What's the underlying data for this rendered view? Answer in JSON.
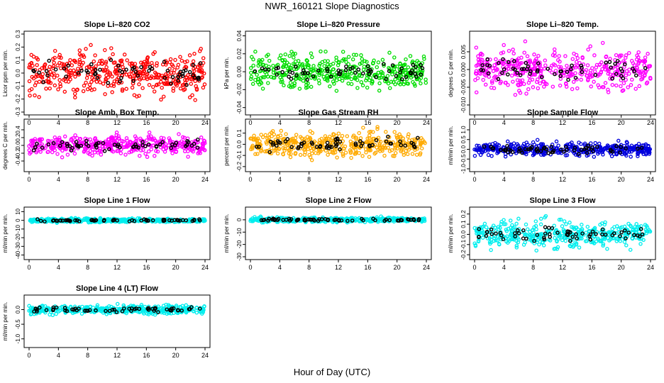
{
  "page": {
    "title": "NWR_160121  Slope Diagnostics",
    "xlabel": "Hour of Day (UTC)"
  },
  "chart_data": [
    {
      "type": "scatter",
      "title": "Slope Li–820 CO2",
      "ylabel": "Licor ppm per min.",
      "xlim": [
        0,
        24
      ],
      "ylim": [
        -0.3,
        0.3
      ],
      "xticks": [
        0,
        4,
        8,
        12,
        16,
        20,
        24
      ],
      "yticks": [
        -0.3,
        -0.2,
        -0.1,
        0.0,
        0.1,
        0.2,
        0.3
      ],
      "ytick_labels": [
        "-0.3",
        "-0.2",
        "-0.1",
        "0.0",
        "0.1",
        "0.2",
        "0.3"
      ],
      "color": "#ff0000",
      "spread": 0.09,
      "series": [
        {
          "name": "",
          "values": "dense"
        }
      ]
    },
    {
      "type": "scatter",
      "title": "Slope Li–820 Pressure",
      "ylabel": "kPa per min.",
      "xlim": [
        0,
        24
      ],
      "ylim": [
        -0.045,
        0.042
      ],
      "xticks": [
        0,
        4,
        8,
        12,
        16,
        20,
        24
      ],
      "yticks": [
        -0.04,
        -0.02,
        0.0,
        0.02,
        0.04
      ],
      "ytick_labels": [
        "-0.04",
        "-0.02",
        "0.00",
        "0.02",
        "0.04"
      ],
      "color": "#00dd00",
      "spread": 0.01,
      "series": [
        {
          "name": "",
          "values": "dense"
        }
      ]
    },
    {
      "type": "scatter",
      "title": "Slope Li–820 Temp.",
      "ylabel": "degrees C per min.",
      "xlim": [
        0,
        24
      ],
      "ylim": [
        -0.012,
        0.01
      ],
      "xticks": [
        0,
        4,
        8,
        12,
        16,
        20,
        24
      ],
      "yticks": [
        -0.01,
        -0.005,
        0.0,
        0.005
      ],
      "ytick_labels": [
        "-0.010",
        "-0.005",
        "0.000",
        "0.005"
      ],
      "color": "#ff00ff",
      "spread": 0.003,
      "series": [
        {
          "name": "",
          "values": "dense"
        }
      ]
    },
    {
      "type": "scatter",
      "title": "Slope Amb. Box Temp.",
      "ylabel": "degrees C per min.",
      "xlim": [
        0,
        24
      ],
      "ylim": [
        -0.6,
        0.6
      ],
      "xticks": [
        0,
        4,
        8,
        12,
        16,
        20,
        24
      ],
      "yticks": [
        -0.4,
        -0.2,
        0.0,
        0.2,
        0.4
      ],
      "ytick_labels": [
        "-0.4",
        "-0.2",
        "0.0",
        "0.2",
        "0.4"
      ],
      "color": "#ff00ff",
      "spread": 0.13,
      "series": [
        {
          "name": "",
          "values": "dense"
        }
      ]
    },
    {
      "type": "scatter",
      "title": "Slope Gas Stream RH",
      "ylabel": "percent per min.",
      "xlim": [
        0,
        24
      ],
      "ylim": [
        -0.22,
        0.2
      ],
      "xticks": [
        0,
        4,
        8,
        12,
        16,
        20,
        24
      ],
      "yticks": [
        -0.2,
        -0.1,
        0.0,
        0.1
      ],
      "ytick_labels": [
        "-0.2",
        "-0.1",
        "0.0",
        "0.1"
      ],
      "color": "#ffaa00",
      "spread": 0.06,
      "series": [
        {
          "name": "",
          "values": "dense"
        }
      ]
    },
    {
      "type": "scatter",
      "title": "Slope Sample Flow",
      "ylabel": "ml/min per min.",
      "xlim": [
        0,
        24
      ],
      "ylim": [
        -1.0,
        1.4
      ],
      "xticks": [
        0,
        4,
        8,
        12,
        16,
        20,
        24
      ],
      "yticks": [
        -1.0,
        -0.5,
        0.0,
        0.5,
        1.0
      ],
      "ytick_labels": [
        "-1.0",
        "-0.5",
        "0.0",
        "0.5",
        "1.0"
      ],
      "color": "#0000dd",
      "spread": 0.18,
      "series": [
        {
          "name": "",
          "values": "dense"
        }
      ]
    },
    {
      "type": "scatter",
      "title": "Slope Line 1 Flow",
      "ylabel": "ml/min per min.",
      "xlim": [
        0,
        24
      ],
      "ylim": [
        -42,
        12
      ],
      "xticks": [
        0,
        4,
        8,
        12,
        16,
        20,
        24
      ],
      "yticks": [
        -40,
        -30,
        -20,
        -10,
        0,
        10
      ],
      "ytick_labels": [
        "-40",
        "-30",
        "-20",
        "-10",
        "0",
        "10"
      ],
      "color": "#00eeee",
      "spread": 1.2,
      "series": [
        {
          "name": "",
          "values": "dense"
        }
      ]
    },
    {
      "type": "scatter",
      "title": "Slope Line 2 Flow",
      "ylabel": "ml/min per min.",
      "xlim": [
        0,
        24
      ],
      "ylim": [
        -30,
        8
      ],
      "xticks": [
        0,
        4,
        8,
        12,
        16,
        20,
        24
      ],
      "yticks": [
        -30,
        -20,
        -10,
        0
      ],
      "ytick_labels": [
        "-30",
        "-20",
        "-10",
        "0"
      ],
      "color": "#00eeee",
      "spread": 1.0,
      "series": [
        {
          "name": "",
          "values": "dense"
        }
      ]
    },
    {
      "type": "scatter",
      "title": "Slope Line 3 Flow",
      "ylabel": "ml/min per min.",
      "xlim": [
        0,
        24
      ],
      "ylim": [
        -0.22,
        0.24
      ],
      "xticks": [
        0,
        4,
        8,
        12,
        16,
        20,
        24
      ],
      "yticks": [
        -0.2,
        -0.1,
        0.0,
        0.1,
        0.2
      ],
      "ytick_labels": [
        "-0.2",
        "-0.1",
        "0.0",
        "0.1",
        "0.2"
      ],
      "color": "#00eeee",
      "spread": 0.07,
      "series": [
        {
          "name": "",
          "values": "dense"
        }
      ]
    },
    {
      "type": "scatter",
      "title": "Slope Line 4 (LT) Flow",
      "ylabel": "ml/min per min.",
      "xlim": [
        0,
        24
      ],
      "ylim": [
        -1.2,
        0.4
      ],
      "xticks": [
        0,
        4,
        8,
        12,
        16,
        20,
        24
      ],
      "yticks": [
        -1.0,
        -0.5,
        0.0
      ],
      "ytick_labels": [
        "-1.0",
        "-0.5",
        "0.0"
      ],
      "color": "#00eeee",
      "spread": 0.08,
      "series": [
        {
          "name": "",
          "values": "dense"
        }
      ]
    }
  ]
}
